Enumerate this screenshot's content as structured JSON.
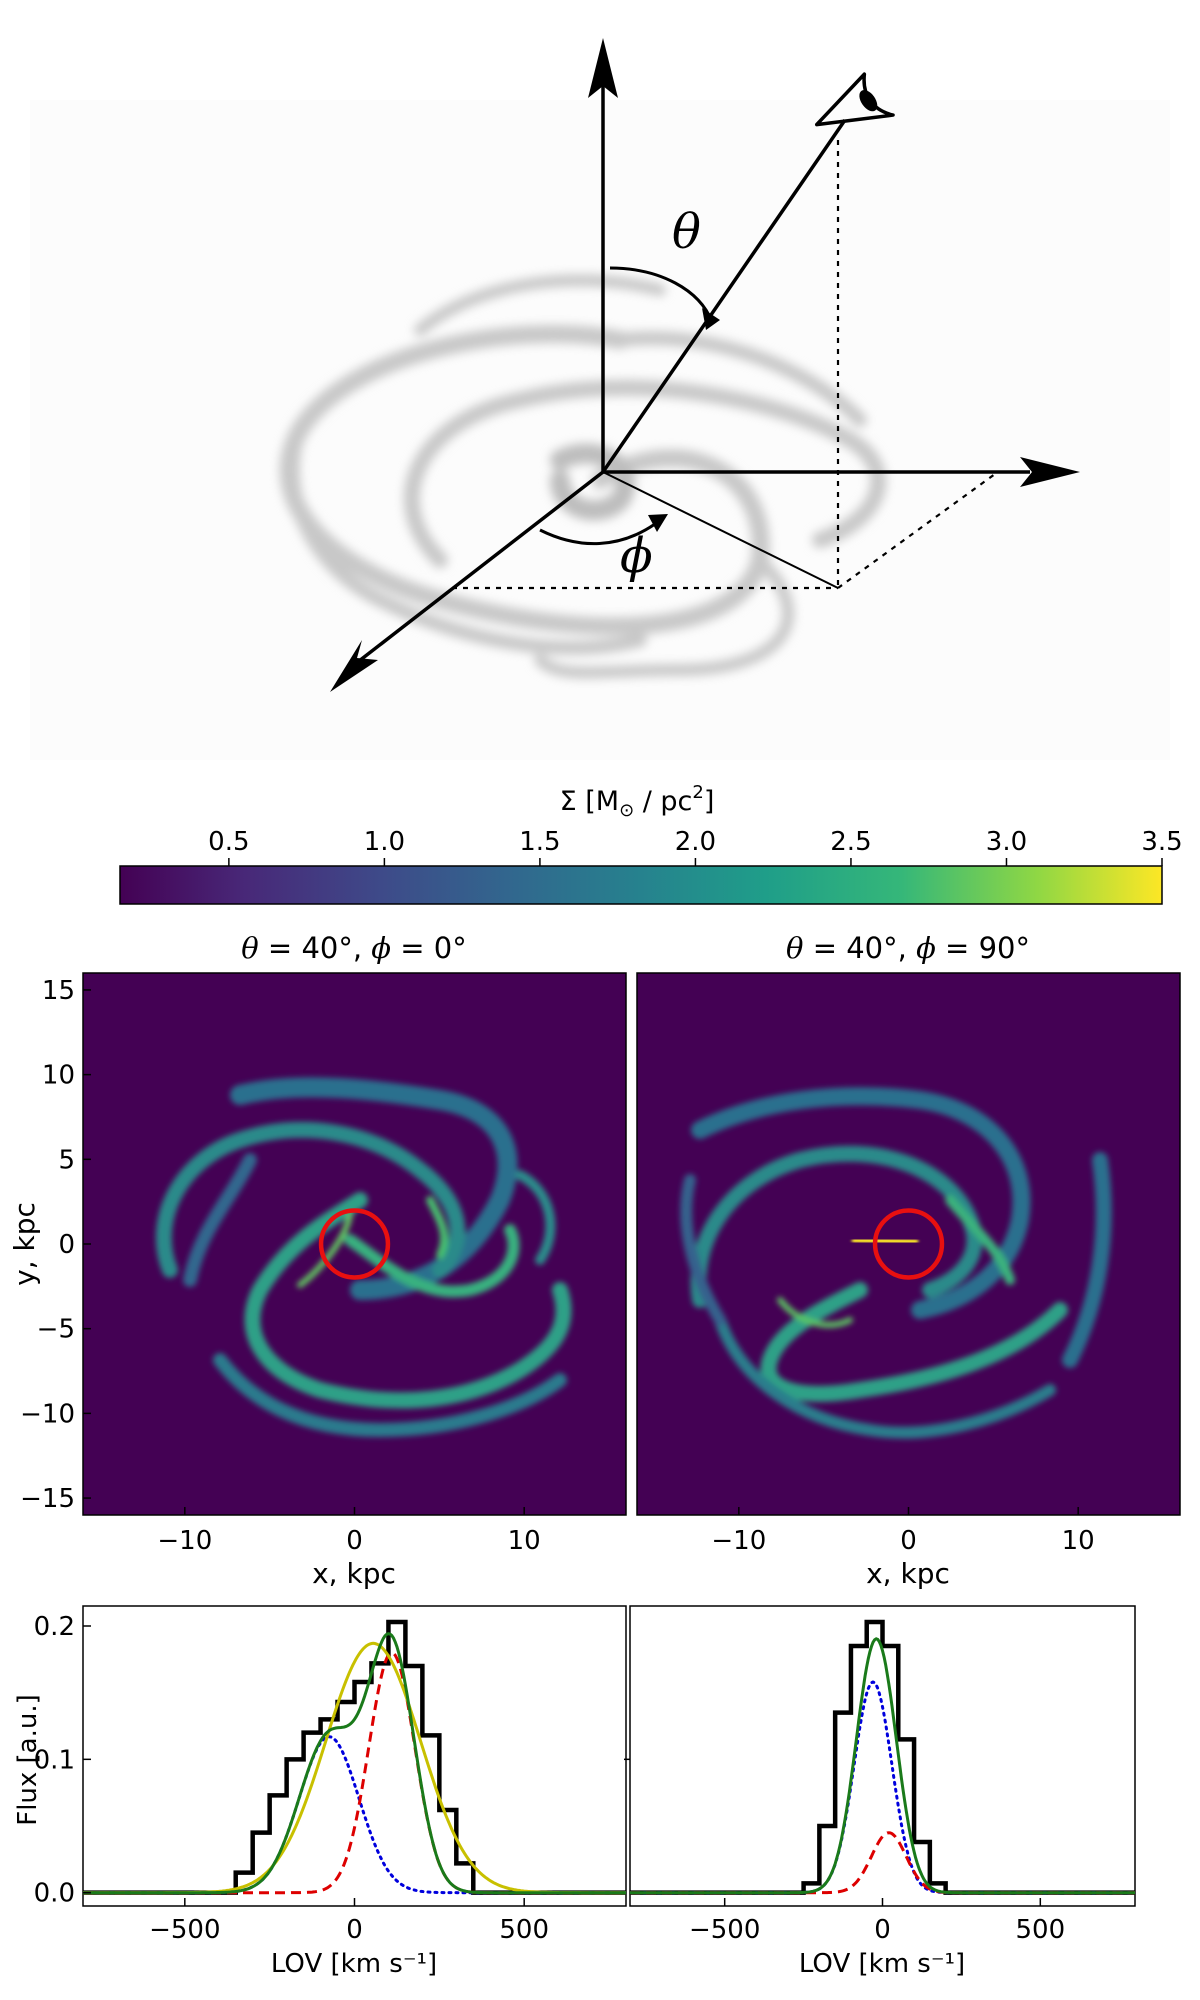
{
  "diagram": {
    "theta_symbol": "θ",
    "phi_symbol": "ϕ"
  },
  "colorbar": {
    "label_main": "Σ [M",
    "label_sub": "⊙",
    "label_rest": " / pc",
    "label_sup": "2",
    "label_end": "]",
    "ticks": [
      "0.5",
      "1.0",
      "1.5",
      "2.0",
      "2.5",
      "3.0",
      "3.5"
    ],
    "range": [
      0.15,
      3.5
    ]
  },
  "panels": {
    "left_title": {
      "p1": "θ",
      "p2": " = 40°, ",
      "p3": "ϕ",
      "p4": " = 0°"
    },
    "right_title": {
      "p1": "θ",
      "p2": " = 40°, ",
      "p3": "ϕ",
      "p4": " = 90°"
    },
    "xlabel": "x, kpc",
    "ylabel": "y, kpc"
  },
  "chart_data": [
    {
      "type": "heatmap",
      "title": "θ = 40°, ϕ = 0°",
      "xlabel": "x, kpc",
      "ylabel": "y, kpc",
      "xlim": [
        -16,
        16
      ],
      "ylim": [
        -16,
        16
      ],
      "xticks": [
        "−10",
        "0",
        "10"
      ],
      "yticks": [
        "15",
        "10",
        "5",
        "0",
        "−5",
        "−10",
        "−15"
      ],
      "aperture": {
        "center": [
          0,
          0
        ],
        "radius": 1.5
      }
    },
    {
      "type": "heatmap",
      "title": "θ = 40°, ϕ = 90°",
      "xlabel": "x, kpc",
      "xlim": [
        -16,
        16
      ],
      "ylim": [
        -16,
        16
      ],
      "xticks": [
        "−10",
        "0",
        "10"
      ],
      "aperture": {
        "center": [
          0,
          0
        ],
        "radius": 1.5
      }
    },
    {
      "type": "line",
      "xlabel": "LOV [km s⁻¹]",
      "ylabel": "Flux [a.u.]",
      "xlim": [
        -800,
        800
      ],
      "ylim": [
        -0.01,
        0.215
      ],
      "xticks": [
        "−500",
        "0",
        "500"
      ],
      "yticks": [
        "0.0",
        "0.1",
        "0.2"
      ],
      "histogram": {
        "edges": [
          -450,
          -350,
          -300,
          -250,
          -200,
          -150,
          -100,
          -50,
          0,
          50,
          100,
          150,
          200,
          250,
          300,
          350,
          450
        ],
        "values": [
          0.0,
          0.015,
          0.045,
          0.073,
          0.1,
          0.12,
          0.13,
          0.143,
          0.158,
          0.172,
          0.203,
          0.17,
          0.118,
          0.062,
          0.022,
          0.0
        ]
      },
      "series": [
        {
          "color": "#0000dd",
          "style": "dotted",
          "gauss": [
            0.117,
            -75,
            88
          ]
        },
        {
          "color": "#dd0000",
          "style": "dashed",
          "gauss": [
            0.18,
            110,
            68
          ]
        },
        {
          "color": "#c8c000",
          "style": "solid",
          "gauss": [
            0.187,
            55,
            140
          ]
        },
        {
          "color": "#1a7a1a",
          "style": "solid",
          "sum": true
        }
      ]
    },
    {
      "type": "line",
      "xlabel": "LOV [km s⁻¹]",
      "xlim": [
        -800,
        800
      ],
      "ylim": [
        -0.01,
        0.215
      ],
      "xticks": [
        "−500",
        "0",
        "500"
      ],
      "histogram": {
        "edges": [
          -250,
          -200,
          -150,
          -100,
          -50,
          0,
          50,
          100,
          150,
          200
        ],
        "values": [
          0.007,
          0.05,
          0.135,
          0.185,
          0.203,
          0.185,
          0.115,
          0.038,
          0.007
        ]
      },
      "series": [
        {
          "color": "#0000dd",
          "style": "dotted",
          "gauss": [
            0.158,
            -30,
            60
          ]
        },
        {
          "color": "#dd0000",
          "style": "dashed",
          "gauss": [
            0.045,
            20,
            55
          ]
        },
        {
          "color": "#1a7a1a",
          "style": "solid",
          "sum": true
        }
      ]
    }
  ]
}
